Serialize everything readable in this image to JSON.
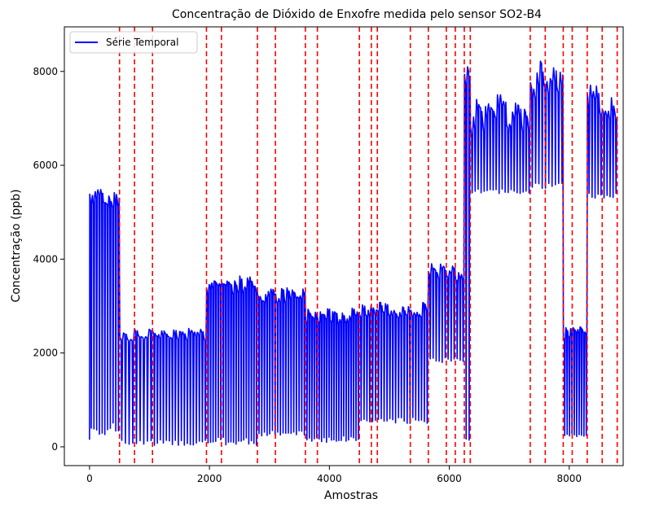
{
  "chart_data": {
    "type": "line",
    "title": "Concentração de Dióxido de Enxofre medida pelo sensor SO2-B4",
    "xlabel": "Amostras",
    "ylabel": "Concentração (ppb)",
    "xlim": [
      -420,
      8900
    ],
    "ylim": [
      -400,
      8950
    ],
    "xticks": [
      0,
      2000,
      4000,
      6000,
      8000
    ],
    "yticks": [
      0,
      2000,
      4000,
      6000,
      8000
    ],
    "grid": false,
    "legend": {
      "position": "top-left",
      "entries": [
        "Série Temporal"
      ]
    },
    "series": [
      {
        "name": "Série Temporal",
        "color": "#0000ff",
        "segments": [
          {
            "x0": 0,
            "x1": 500,
            "base": 5500,
            "low": 250,
            "cycles": 11,
            "start": 150
          },
          {
            "x0": 500,
            "x1": 1050,
            "base": 2450,
            "low": 30,
            "cycles": 9
          },
          {
            "x0": 1050,
            "x1": 1950,
            "base": 2500,
            "low": 30,
            "cycles": 18
          },
          {
            "x0": 1950,
            "x1": 2800,
            "base": 3550,
            "low": 30,
            "cycles": 20
          },
          {
            "x0": 2800,
            "x1": 3600,
            "base": 3300,
            "low": 200,
            "cycles": 18
          },
          {
            "x0": 3600,
            "x1": 4500,
            "base": 2900,
            "low": 100,
            "cycles": 22
          },
          {
            "x0": 4500,
            "x1": 5650,
            "base": 3000,
            "low": 500,
            "cycles": 24
          },
          {
            "x0": 5650,
            "x1": 6250,
            "base": 3800,
            "low": 1800,
            "cycles": 12
          },
          {
            "x0": 6250,
            "x1": 6350,
            "base": 8400,
            "low": 100,
            "cycles": 2
          },
          {
            "x0": 6350,
            "x1": 7350,
            "base": 7300,
            "low": 5400,
            "cycles": 20
          },
          {
            "x0": 7350,
            "x1": 7900,
            "base": 8000,
            "low": 5500,
            "cycles": 10
          },
          {
            "x0": 7900,
            "x1": 8300,
            "base": 2500,
            "low": 200,
            "cycles": 10
          },
          {
            "x0": 8300,
            "x1": 8800,
            "base": 7500,
            "low": 5300,
            "cycles": 10
          }
        ]
      }
    ],
    "change_points": {
      "color": "#ff0000",
      "style": "dashed",
      "x": [
        500,
        750,
        1050,
        1950,
        2200,
        2800,
        3100,
        3600,
        3800,
        4500,
        4700,
        4800,
        5350,
        5650,
        5950,
        6100,
        6250,
        6350,
        7350,
        7600,
        7900,
        8050,
        8300,
        8550,
        8800
      ]
    }
  }
}
